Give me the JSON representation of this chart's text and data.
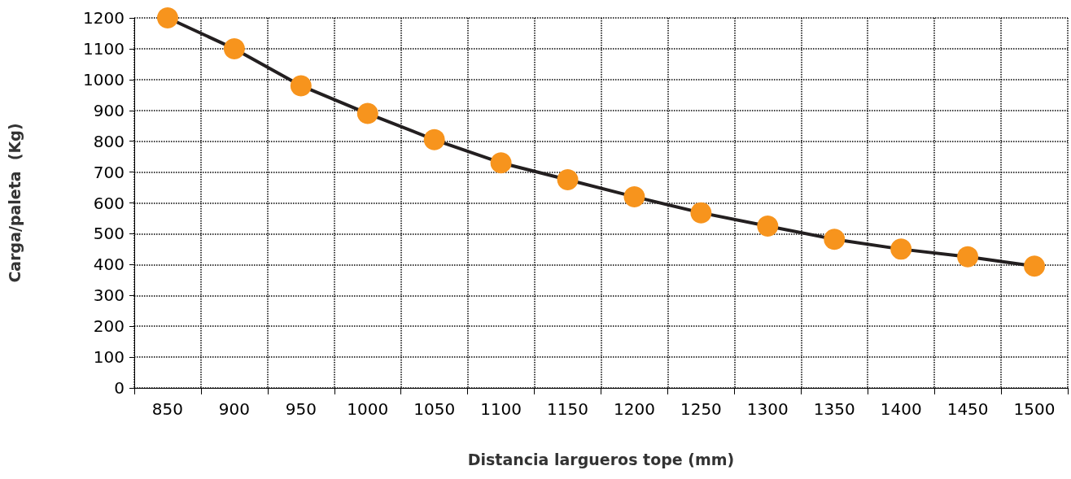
{
  "chart_data": {
    "type": "line",
    "xlabel": "Distancia largueros tope (mm)",
    "ylabel": "Carga/paleta  (Kg)",
    "categories": [
      "850",
      "900",
      "950",
      "1000",
      "1050",
      "1100",
      "1150",
      "1200",
      "1250",
      "1300",
      "1350",
      "1400",
      "1450",
      "1500"
    ],
    "series": [
      {
        "color": "#f7941d",
        "values": [
          1200,
          1100,
          980,
          890,
          805,
          730,
          675,
          620,
          568,
          525,
          482,
          450,
          425,
          395
        ]
      }
    ],
    "ylim": [
      0,
      1200
    ],
    "yticks": [
      0,
      100,
      200,
      300,
      400,
      500,
      600,
      700,
      800,
      900,
      1000,
      1100,
      1200
    ],
    "grid": true,
    "marker": "circle",
    "line_style": "solid"
  }
}
